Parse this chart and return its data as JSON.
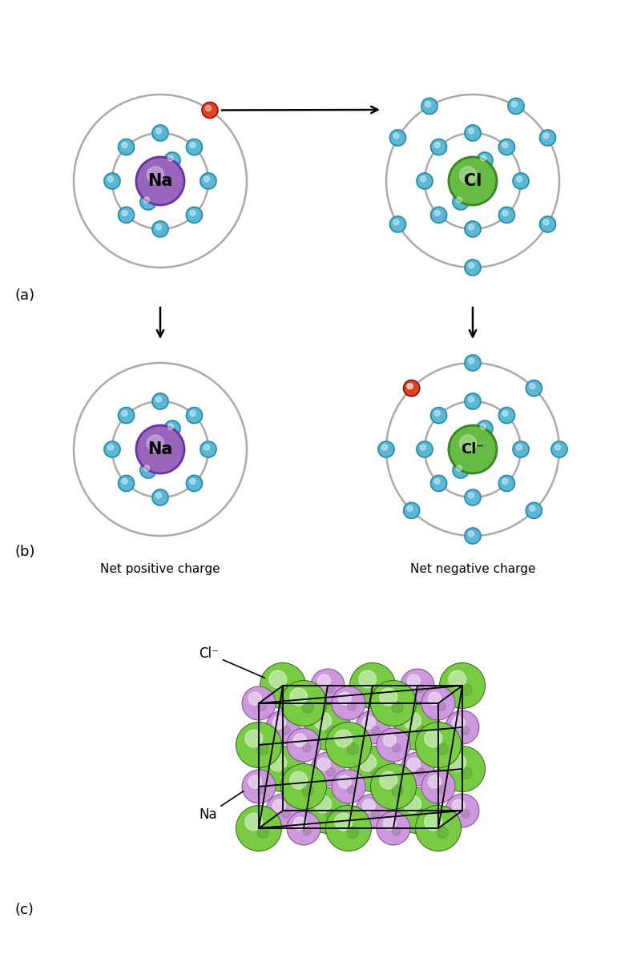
{
  "bg_color": "#ffffff",
  "electron_color": "#5BB8D4",
  "electron_edge": "#2288aa",
  "na_color": "#9966BB",
  "na_edge": "#6633aa",
  "cl_color": "#66bb44",
  "cl_edge": "#338822",
  "red_color": "#dd4422",
  "red_edge": "#991100",
  "orbit_color": "#aaaaaa",
  "green_crystal": "#77cc44",
  "green_crystal_edge": "#336611",
  "purple_crystal": "#cc99dd",
  "purple_crystal_edge": "#884499",
  "panel_a_label": "(a)",
  "panel_b_label": "(b)",
  "panel_c_label": "(c)",
  "net_positive": "Net positive charge",
  "net_negative": "Net negative charge"
}
